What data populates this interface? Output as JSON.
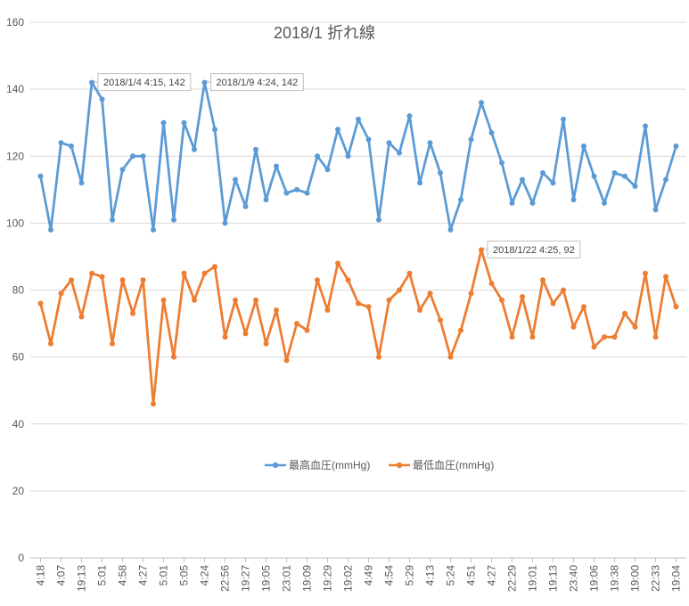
{
  "chart_data": {
    "type": "line",
    "title": "2018/1  折れ線",
    "xlabel": "",
    "ylabel": "",
    "ylim": [
      0,
      160
    ],
    "yticks": [
      0,
      20,
      40,
      60,
      80,
      100,
      120,
      140,
      160
    ],
    "grid": true,
    "legend_position": "bottom-center",
    "x_tick_labels": [
      "4:18",
      "4:07",
      "19:13",
      "5:01",
      "4:58",
      "4:27",
      "5:01",
      "5:05",
      "4:24",
      "22:56",
      "19:27",
      "19:05",
      "23:01",
      "19:09",
      "19:29",
      "19:02",
      "4:49",
      "4:54",
      "5:29",
      "4:13",
      "5:24",
      "4:51",
      "4:27",
      "22:29",
      "19:01",
      "19:13",
      "23:40",
      "19:06",
      "19:38",
      "19:00",
      "22:33",
      "19:04"
    ],
    "series": [
      {
        "name": "最高血圧(mmHg)",
        "color": "#5b9bd5",
        "values": [
          114,
          98,
          124,
          123,
          112,
          142,
          137,
          101,
          116,
          120,
          120,
          98,
          130,
          101,
          130,
          122,
          142,
          128,
          100,
          113,
          105,
          122,
          107,
          117,
          109,
          110,
          109,
          120,
          116,
          128,
          120,
          131,
          125,
          101,
          124,
          121,
          132,
          112,
          124,
          115,
          98,
          107,
          125,
          136,
          127,
          118,
          106,
          113,
          106,
          115,
          112,
          131,
          107,
          123,
          114,
          106,
          115,
          114,
          111,
          129,
          104,
          113,
          123
        ]
      },
      {
        "name": "最低血圧(mmHg)",
        "color": "#ed7d31",
        "values": [
          76,
          64,
          79,
          83,
          72,
          85,
          84,
          64,
          83,
          73,
          83,
          46,
          77,
          60,
          85,
          77,
          85,
          87,
          66,
          77,
          67,
          77,
          64,
          74,
          59,
          70,
          68,
          83,
          74,
          88,
          83,
          76,
          75,
          60,
          77,
          80,
          85,
          74,
          79,
          71,
          60,
          68,
          79,
          92,
          82,
          77,
          66,
          78,
          66,
          83,
          76,
          80,
          69,
          75,
          63,
          66,
          66,
          73,
          69,
          85,
          66,
          84,
          75
        ]
      }
    ],
    "annotations": [
      {
        "series": 0,
        "index": 5,
        "text": "2018/1/4 4:15, 142"
      },
      {
        "series": 0,
        "index": 16,
        "text": "2018/1/9 4:24, 142"
      },
      {
        "series": 1,
        "index": 43,
        "text": "2018/1/22 4:25, 92"
      }
    ]
  }
}
